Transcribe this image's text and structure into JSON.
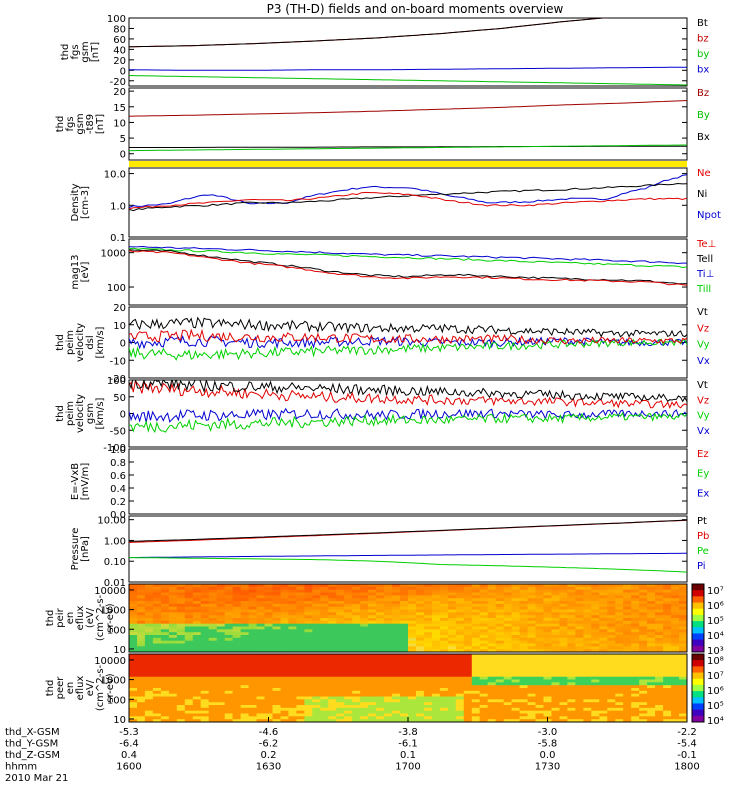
{
  "title": "P3 (TH-D) fields and on-board moments overview",
  "colors": {
    "black": "#000000",
    "red": "#e00000",
    "green": "#00d000",
    "blue": "#0000d0",
    "darkred": "#a00000",
    "yellow": "#ffea00"
  },
  "chart_data": [
    {
      "type": "line",
      "ylabel_lines": [
        "thd",
        "fgs",
        "gsm",
        "[nT]"
      ],
      "ylim": [
        -30,
        100
      ],
      "yticks": [
        100,
        80,
        60,
        40,
        20,
        0,
        -20
      ],
      "series": [
        {
          "name": "Bt",
          "color": "#000000",
          "values": [
            45,
            47,
            51,
            56,
            62,
            70,
            80,
            93,
            104,
            112
          ]
        },
        {
          "name": "bz",
          "color": "#c00000",
          "values": [
            45,
            47,
            51,
            56,
            62,
            70,
            80,
            93,
            104,
            112
          ]
        },
        {
          "name": "by",
          "color": "#00c000",
          "values": [
            -10,
            -12,
            -14,
            -16,
            -18,
            -20,
            -22,
            -24,
            -26,
            -28
          ]
        },
        {
          "name": "bx",
          "color": "#0000d0",
          "values": [
            1,
            0,
            0,
            1,
            1,
            2,
            3,
            4,
            5,
            6
          ]
        }
      ]
    },
    {
      "type": "line",
      "ylabel_lines": [
        "thd",
        "fgs",
        "gsm",
        "-t89",
        "[nT]"
      ],
      "ylim": [
        -2,
        21
      ],
      "yticks": [
        20,
        15,
        10,
        5,
        0
      ],
      "series": [
        {
          "name": "Bz",
          "color": "#a00000",
          "values": [
            12,
            12.3,
            12.7,
            13.1,
            13.6,
            14.2,
            14.8,
            15.6,
            16.2,
            17
          ]
        },
        {
          "name": "By",
          "color": "#00c000",
          "values": [
            1,
            1.2,
            1.4,
            1.6,
            1.8,
            2,
            2.2,
            2.4,
            2.6,
            2.8
          ]
        },
        {
          "name": "Bx",
          "color": "#000000",
          "values": [
            2,
            2,
            2.1,
            2.1,
            2.2,
            2.2,
            2.3,
            2.3,
            2.4,
            2.4
          ]
        }
      ]
    },
    {
      "type": "line",
      "scale": "log",
      "ylabel_lines": [
        "Density",
        "[cm-3]"
      ],
      "ylim": [
        0.1,
        15
      ],
      "yticks": [
        10,
        1,
        0.1
      ],
      "ytick_labels": [
        "10.0",
        "1.0",
        "0.1"
      ],
      "series": [
        {
          "name": "Ne",
          "color": "#e00000",
          "values": [
            0.8,
            1.0,
            1.2,
            1.5,
            1.4,
            1.8,
            2.5,
            2.2,
            1.4,
            1.0,
            1.0,
            1.2,
            1.4,
            1.6,
            1.6
          ]
        },
        {
          "name": "Ni",
          "color": "#000000",
          "values": [
            0.7,
            0.9,
            1.0,
            1.2,
            1.2,
            1.4,
            1.7,
            2.0,
            2.3,
            2.6,
            2.9,
            3.2,
            3.6,
            4.2,
            5.0
          ]
        },
        {
          "name": "Npot",
          "color": "#0000d0",
          "values": [
            0.9,
            1.1,
            2.2,
            1.1,
            1.2,
            2.5,
            3.8,
            3.6,
            2.0,
            1.2,
            1.3,
            1.6,
            1.6,
            3.5,
            9.0
          ]
        }
      ]
    },
    {
      "type": "line",
      "scale": "log",
      "ylabel_lines": [
        "mag13",
        "[eV]"
      ],
      "ylim": [
        30,
        2500
      ],
      "yticks": [
        1000,
        100
      ],
      "ytick_labels": [
        "1000",
        "100"
      ],
      "series": [
        {
          "name": "Te⊥",
          "color": "#e00000",
          "values": [
            1100,
            1000,
            700,
            500,
            380,
            260,
            200,
            180,
            200,
            190,
            170,
            160,
            150,
            140,
            110
          ]
        },
        {
          "name": "Tell",
          "color": "#000000",
          "values": [
            1200,
            1100,
            780,
            560,
            420,
            290,
            220,
            200,
            230,
            210,
            190,
            175,
            165,
            150,
            120
          ]
        },
        {
          "name": "Ti⊥",
          "color": "#0000d0",
          "values": [
            1500,
            1400,
            1300,
            1200,
            1100,
            1000,
            900,
            850,
            800,
            750,
            700,
            650,
            600,
            550,
            500
          ]
        },
        {
          "name": "Till",
          "color": "#00d000",
          "values": [
            1300,
            1200,
            1100,
            1000,
            900,
            850,
            780,
            720,
            660,
            600,
            550,
            500,
            460,
            420,
            380
          ]
        }
      ]
    },
    {
      "type": "line",
      "ylabel_lines": [
        "thd",
        "peim",
        "velocity",
        "dsl",
        "[km/s]"
      ],
      "ylim": [
        -20,
        20
      ],
      "yticks": [
        20,
        10,
        0,
        -10,
        -20
      ],
      "series": [
        {
          "name": "Vt",
          "color": "#000000",
          "values": [
            10,
            11,
            10,
            9,
            8,
            8,
            7,
            6,
            5,
            5
          ]
        },
        {
          "name": "Vz",
          "color": "#e00000",
          "values": [
            3,
            4,
            3,
            3,
            2,
            2,
            2,
            1,
            1,
            1
          ]
        },
        {
          "name": "Vy",
          "color": "#00d000",
          "values": [
            -6,
            -7,
            -6,
            -5,
            -4,
            -3,
            -2,
            -1,
            0,
            0
          ]
        },
        {
          "name": "Vx",
          "color": "#0000d0",
          "values": [
            0,
            1,
            0,
            0,
            1,
            0,
            0,
            1,
            0,
            0
          ]
        }
      ]
    },
    {
      "type": "line",
      "ylabel_lines": [
        "thd",
        "peim",
        "velocity",
        "gsm",
        "[km/s]"
      ],
      "ylim": [
        -100,
        100
      ],
      "yticks": [
        100,
        50,
        0,
        -50,
        -100
      ],
      "series": [
        {
          "name": "Vt",
          "color": "#000000",
          "values": [
            95,
            85,
            80,
            75,
            70,
            65,
            60,
            55,
            50,
            45
          ]
        },
        {
          "name": "Vz",
          "color": "#e00000",
          "values": [
            80,
            70,
            60,
            50,
            45,
            40,
            38,
            35,
            30,
            25
          ]
        },
        {
          "name": "Vy",
          "color": "#00d000",
          "values": [
            -40,
            -35,
            -30,
            -25,
            -20,
            -20,
            -15,
            -15,
            -10,
            -10
          ]
        },
        {
          "name": "Vx",
          "color": "#0000d0",
          "values": [
            -10,
            -5,
            -5,
            0,
            -5,
            0,
            0,
            -5,
            0,
            0
          ]
        }
      ]
    },
    {
      "type": "line",
      "ylabel_lines": [
        "E=-VxB",
        "[mV/m]"
      ],
      "ylim": [
        0,
        1.0
      ],
      "yticks": [
        1.0,
        0.8,
        0.6,
        0.4,
        0.2,
        0.0
      ],
      "ytick_labels": [
        "1.0",
        "0.8",
        "0.6",
        "0.4",
        "0.2",
        "0.0"
      ],
      "series": [
        {
          "name": "Ez",
          "color": "#e00000",
          "values": []
        },
        {
          "name": "Ey",
          "color": "#00d000",
          "values": []
        },
        {
          "name": "Ex",
          "color": "#0000d0",
          "values": []
        }
      ]
    },
    {
      "type": "line",
      "scale": "log",
      "ylabel_lines": [
        "Pressure",
        "[nPa]"
      ],
      "ylim": [
        0.01,
        15
      ],
      "yticks": [
        10,
        1,
        0.1,
        0.01
      ],
      "ytick_labels": [
        "10.00",
        "1.00",
        "0.10",
        "0.01"
      ],
      "series": [
        {
          "name": "Pt",
          "color": "#000000",
          "values": [
            0.9,
            1.1,
            1.4,
            1.8,
            2.3,
            3.0,
            4.0,
            5.3,
            7.0,
            9.5
          ]
        },
        {
          "name": "Pb",
          "color": "#e00000",
          "values": [
            0.8,
            1.0,
            1.3,
            1.7,
            2.2,
            2.9,
            3.9,
            5.2,
            6.9,
            9.3
          ]
        },
        {
          "name": "Pe",
          "color": "#00d000",
          "values": [
            0.15,
            0.14,
            0.13,
            0.12,
            0.1,
            0.07,
            0.06,
            0.05,
            0.04,
            0.03
          ]
        },
        {
          "name": "Pi",
          "color": "#0000d0",
          "values": [
            0.15,
            0.16,
            0.17,
            0.18,
            0.19,
            0.2,
            0.21,
            0.22,
            0.23,
            0.24
          ]
        }
      ]
    },
    {
      "type": "heatmap",
      "ylabel_lines": [
        "thd",
        "peir",
        "en",
        "eflux",
        "(eV/",
        "(cm^2-s-",
        "sr-eV)"
      ],
      "yticks": [
        10000,
        1000,
        100,
        10
      ],
      "colorbar_labels": [
        "10⁷",
        "10⁶",
        "10⁵",
        "10⁴",
        "10³"
      ]
    },
    {
      "type": "heatmap",
      "ylabel_lines": [
        "thd",
        "peer",
        "en",
        "eflux",
        "eV/",
        "(cm^2-s-",
        "sr-eV)"
      ],
      "yticks": [
        10000,
        1000,
        100,
        10
      ],
      "colorbar_labels": [
        "10⁸",
        "10⁷",
        "10⁶",
        "10⁵",
        "10⁴"
      ]
    }
  ],
  "xaxis": {
    "rows": [
      {
        "label": "thd_X-GSM",
        "values": [
          "-5.3",
          "-4.6",
          "-3.8",
          "-3.0",
          "-2.2"
        ]
      },
      {
        "label": "thd_Y-GSM",
        "values": [
          "-6.4",
          "-6.2",
          "-6.1",
          "-5.8",
          "-5.4"
        ]
      },
      {
        "label": "thd_Z-GSM",
        "values": [
          "0.4",
          "0.2",
          "0.1",
          "0.0",
          "-0.1"
        ]
      },
      {
        "label": "hhmm",
        "values": [
          "1600",
          "1630",
          "1700",
          "1730",
          "1800"
        ]
      }
    ],
    "date": "2010 Mar 21"
  }
}
